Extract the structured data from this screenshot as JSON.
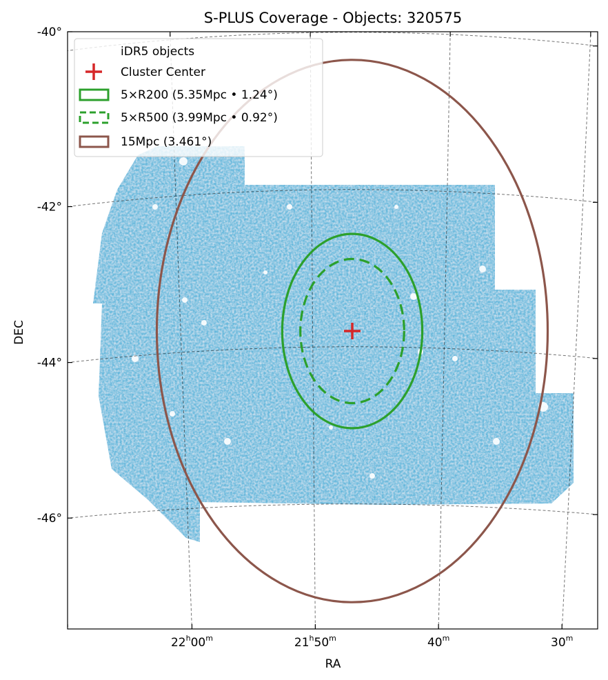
{
  "chart_data": {
    "type": "scatter",
    "title": "S-PLUS Coverage - Objects: 320575",
    "xlabel": "RA",
    "ylabel": "DEC",
    "projection": "sky (RA/DEC)",
    "grid": true,
    "legend_placement": "top-left",
    "ra_ticks": [
      {
        "value_deg": 330.0,
        "h": "22",
        "m": "00",
        "hour_part": true
      },
      {
        "value_deg": 327.5,
        "h": "21",
        "m": "50",
        "hour_part": true
      },
      {
        "value_deg": 325.0,
        "m": "40",
        "hour_part": false
      },
      {
        "value_deg": 322.5,
        "m": "30",
        "hour_part": false
      }
    ],
    "dec_ticks": [
      {
        "value_deg": -40,
        "label": "-40°"
      },
      {
        "value_deg": -42,
        "label": "-42°"
      },
      {
        "value_deg": -44,
        "label": "-44°"
      },
      {
        "value_deg": -46,
        "label": "-46°"
      }
    ],
    "legend": [
      {
        "label": "iDR5 objects",
        "kind": "points",
        "color": "#1f77b4"
      },
      {
        "label": "Cluster Center",
        "kind": "marker",
        "color": "#d62728"
      },
      {
        "label": "5×R200 (5.35Mpc • 1.24$^\\circ$)",
        "kind": "solid-rect",
        "color": "#2ca02c"
      },
      {
        "label": "5×R500 (3.99Mpc • 0.92$^\\circ$)",
        "kind": "dashed-rect",
        "color": "#2ca02c"
      },
      {
        "label": "15Mpc (3.461$^\\circ$)",
        "kind": "solid-rect",
        "color": "#8c564b"
      }
    ],
    "cluster_center": {
      "ra_deg": 326.75,
      "dec_deg": -43.8
    },
    "circles": [
      {
        "name": "5×R200",
        "radius_deg": 1.24,
        "style": "solid",
        "color": "#2ca02c"
      },
      {
        "name": "5×R500",
        "radius_deg": 0.92,
        "style": "dashed",
        "color": "#2ca02c"
      },
      {
        "name": "15Mpc",
        "radius_deg": 3.461,
        "style": "solid",
        "color": "#8c564b"
      }
    ],
    "object_count": 320575,
    "point_color": "#1f77b4"
  }
}
